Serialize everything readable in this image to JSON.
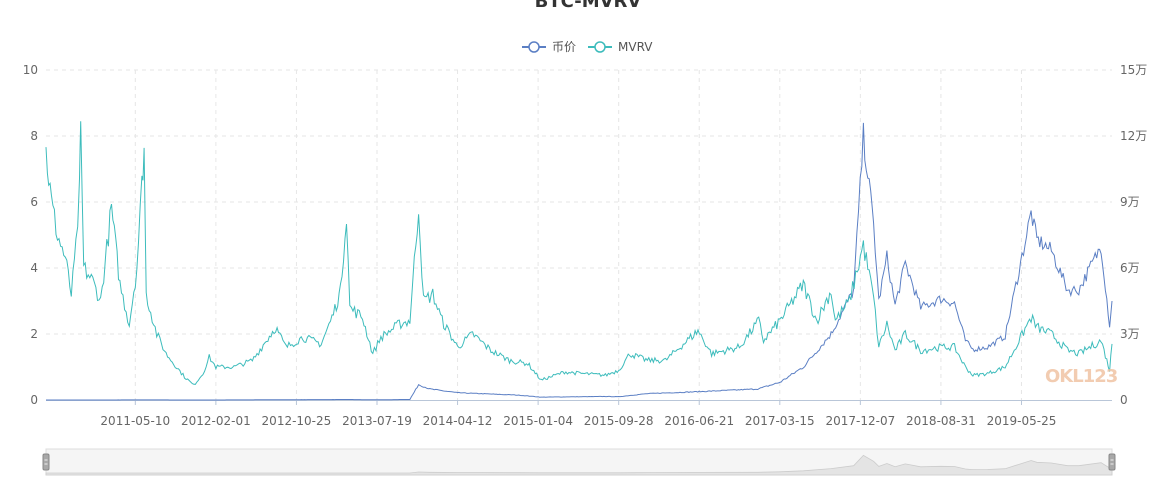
{
  "chart_data": {
    "type": "line",
    "title": "BTC-MVRV",
    "legend": {
      "position": "top-center"
    },
    "grid": true,
    "x_tick_labels": [
      "2011-05-10",
      "2012-02-01",
      "2012-10-25",
      "2013-07-19",
      "2014-04-12",
      "2015-01-04",
      "2015-09-28",
      "2016-06-21",
      "2017-03-15",
      "2017-12-07",
      "2018-08-31",
      "2019-05-25"
    ],
    "x_range": [
      "2010-07-18",
      "2020-03-20"
    ],
    "y_left": {
      "ylim": [
        0,
        10
      ],
      "ticks": [
        "0",
        "2",
        "4",
        "6",
        "8",
        "10"
      ]
    },
    "y_right": {
      "ylim": [
        0,
        150000
      ],
      "ticks": [
        "0",
        "3万",
        "6万",
        "9万",
        "12万",
        "15万"
      ]
    },
    "series": [
      {
        "name": "币价",
        "axis": "right",
        "color": "#5b7fc4",
        "points": [
          [
            "2010-07-18",
            0.05
          ],
          [
            "2011-06-08",
            30
          ],
          [
            "2012-02-01",
            6
          ],
          [
            "2013-04-09",
            230
          ],
          [
            "2013-07-19",
            90
          ],
          [
            "2013-11-05",
            250
          ],
          [
            "2013-12-04",
            7000
          ],
          [
            "2014-01-10",
            5000
          ],
          [
            "2014-04-12",
            3300
          ],
          [
            "2014-11-01",
            2200
          ],
          [
            "2015-01-14",
            1300
          ],
          [
            "2015-08-15",
            1600
          ],
          [
            "2015-09-28",
            1500
          ],
          [
            "2016-01-01",
            2900
          ],
          [
            "2016-06-21",
            3800
          ],
          [
            "2017-01-01",
            5000
          ],
          [
            "2017-03-15",
            8000
          ],
          [
            "2017-06-01",
            15000
          ],
          [
            "2017-09-01",
            30000
          ],
          [
            "2017-11-15",
            50000
          ],
          [
            "2017-12-17",
            120000
          ],
          [
            "2018-01-20",
            80000
          ],
          [
            "2018-02-06",
            45000
          ],
          [
            "2018-03-05",
            65000
          ],
          [
            "2018-04-01",
            43000
          ],
          [
            "2018-05-05",
            62000
          ],
          [
            "2018-06-25",
            42000
          ],
          [
            "2018-08-31",
            46000
          ],
          [
            "2018-10-15",
            44000
          ],
          [
            "2018-11-20",
            27000
          ],
          [
            "2018-12-15",
            23000
          ],
          [
            "2019-02-01",
            24000
          ],
          [
            "2019-04-01",
            29000
          ],
          [
            "2019-06-26",
            85000
          ],
          [
            "2019-07-15",
            73000
          ],
          [
            "2019-09-01",
            68000
          ],
          [
            "2019-10-25",
            50000
          ],
          [
            "2019-12-01",
            50000
          ],
          [
            "2020-02-13",
            70000
          ],
          [
            "2020-03-12",
            34000
          ],
          [
            "2020-03-20",
            45000
          ]
        ]
      },
      {
        "name": "MVRV",
        "axis": "left",
        "color": "#3dbcbc",
        "points": [
          [
            "2010-07-18",
            7.5
          ],
          [
            "2010-08-05",
            6.0
          ],
          [
            "2010-08-25",
            5.0
          ],
          [
            "2010-09-20",
            4.3
          ],
          [
            "2010-10-10",
            3.2
          ],
          [
            "2010-10-25",
            4.6
          ],
          [
            "2010-11-06",
            6.3
          ],
          [
            "2010-11-10",
            8.2
          ],
          [
            "2010-11-20",
            4.0
          ],
          [
            "2010-12-20",
            3.6
          ],
          [
            "2011-01-15",
            3.0
          ],
          [
            "2011-02-20",
            5.8
          ],
          [
            "2011-03-20",
            3.5
          ],
          [
            "2011-04-20",
            2.3
          ],
          [
            "2011-05-15",
            4.0
          ],
          [
            "2011-06-01",
            6.5
          ],
          [
            "2011-06-08",
            7.7
          ],
          [
            "2011-06-15",
            3.2
          ],
          [
            "2011-07-20",
            2.0
          ],
          [
            "2011-08-20",
            1.4
          ],
          [
            "2011-10-20",
            0.7
          ],
          [
            "2011-11-20",
            0.45
          ],
          [
            "2011-12-20",
            0.8
          ],
          [
            "2012-01-10",
            1.3
          ],
          [
            "2012-02-01",
            1.0
          ],
          [
            "2012-04-01",
            1.0
          ],
          [
            "2012-06-01",
            1.2
          ],
          [
            "2012-08-17",
            2.2
          ],
          [
            "2012-09-20",
            1.6
          ],
          [
            "2012-11-15",
            1.9
          ],
          [
            "2013-01-15",
            1.7
          ],
          [
            "2013-02-20",
            2.5
          ],
          [
            "2013-03-20",
            3.3
          ],
          [
            "2013-04-09",
            5.7
          ],
          [
            "2013-04-20",
            2.8
          ],
          [
            "2013-06-01",
            2.5
          ],
          [
            "2013-07-05",
            1.4
          ],
          [
            "2013-08-01",
            1.9
          ],
          [
            "2013-10-01",
            2.3
          ],
          [
            "2013-11-05",
            2.4
          ],
          [
            "2013-12-04",
            5.9
          ],
          [
            "2013-12-20",
            3.0
          ],
          [
            "2014-01-20",
            3.2
          ],
          [
            "2014-02-20",
            2.4
          ],
          [
            "2014-04-12",
            1.6
          ],
          [
            "2014-06-01",
            2.0
          ],
          [
            "2014-08-01",
            1.5
          ],
          [
            "2014-10-01",
            1.2
          ],
          [
            "2014-12-01",
            1.1
          ],
          [
            "2015-01-14",
            0.6
          ],
          [
            "2015-04-01",
            0.85
          ],
          [
            "2015-06-01",
            0.8
          ],
          [
            "2015-08-15",
            0.75
          ],
          [
            "2015-09-28",
            0.9
          ],
          [
            "2015-11-04",
            1.4
          ],
          [
            "2016-01-01",
            1.2
          ],
          [
            "2016-03-01",
            1.2
          ],
          [
            "2016-06-17",
            2.1
          ],
          [
            "2016-08-01",
            1.4
          ],
          [
            "2016-11-01",
            1.6
          ],
          [
            "2017-01-04",
            2.4
          ],
          [
            "2017-01-20",
            1.8
          ],
          [
            "2017-03-15",
            2.4
          ],
          [
            "2017-06-01",
            3.5
          ],
          [
            "2017-07-15",
            2.4
          ],
          [
            "2017-09-01",
            3.3
          ],
          [
            "2017-09-15",
            2.4
          ],
          [
            "2017-11-01",
            3.0
          ],
          [
            "2017-12-17",
            4.7
          ],
          [
            "2018-01-20",
            3.1
          ],
          [
            "2018-02-06",
            1.6
          ],
          [
            "2018-03-05",
            2.3
          ],
          [
            "2018-04-01",
            1.5
          ],
          [
            "2018-05-05",
            2.0
          ],
          [
            "2018-06-25",
            1.5
          ],
          [
            "2018-08-31",
            1.6
          ],
          [
            "2018-10-15",
            1.6
          ],
          [
            "2018-11-20",
            1.0
          ],
          [
            "2018-12-15",
            0.75
          ],
          [
            "2019-02-01",
            0.8
          ],
          [
            "2019-04-01",
            1.0
          ],
          [
            "2019-06-26",
            2.5
          ],
          [
            "2019-07-15",
            2.2
          ],
          [
            "2019-09-01",
            2.0
          ],
          [
            "2019-10-25",
            1.5
          ],
          [
            "2019-12-01",
            1.4
          ],
          [
            "2020-02-13",
            1.8
          ],
          [
            "2020-03-12",
            0.9
          ],
          [
            "2020-03-20",
            1.7
          ]
        ]
      }
    ]
  },
  "watermark": "OKL123"
}
